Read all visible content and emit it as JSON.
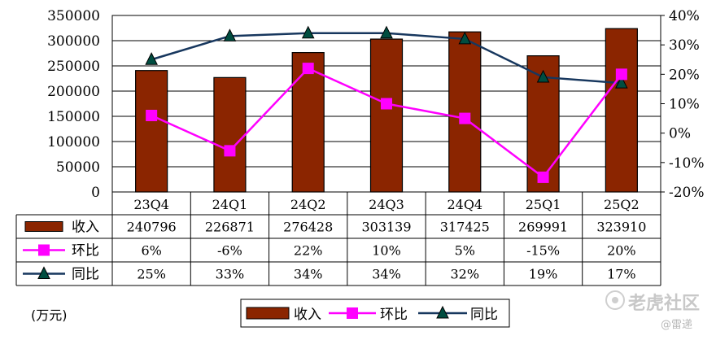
{
  "chart_data": {
    "type": "bar",
    "categories": [
      "23Q4",
      "24Q1",
      "24Q2",
      "24Q3",
      "24Q4",
      "25Q1",
      "25Q2"
    ],
    "series": [
      {
        "name": "收入",
        "kind": "bar",
        "axis": "left",
        "values": [
          240796,
          226871,
          276428,
          303139,
          317425,
          269991,
          323910
        ],
        "color": "#8B2500",
        "labels": [
          "240796",
          "226871",
          "276428",
          "303139",
          "317425",
          "269991",
          "323910"
        ]
      },
      {
        "name": "环比",
        "kind": "line",
        "axis": "right",
        "marker": "square",
        "values": [
          6,
          -6,
          22,
          10,
          5,
          -15,
          20
        ],
        "color": "#FF00FF",
        "labels": [
          "6%",
          "-6%",
          "22%",
          "10%",
          "5%",
          "-15%",
          "20%"
        ]
      },
      {
        "name": "同比",
        "kind": "line",
        "axis": "right",
        "marker": "triangle",
        "values": [
          25,
          33,
          34,
          34,
          32,
          19,
          17
        ],
        "color": "#17375E",
        "labels": [
          "25%",
          "33%",
          "34%",
          "34%",
          "32%",
          "19%",
          "17%"
        ]
      }
    ],
    "y_left": {
      "min": 0,
      "max": 350000,
      "ticks": [
        "350000",
        "300000",
        "250000",
        "200000",
        "150000",
        "100000",
        "50000",
        "0"
      ]
    },
    "y_right": {
      "min": -20,
      "max": 40,
      "ticks": [
        "40%",
        "30%",
        "20%",
        "10%",
        "0%",
        "-10%",
        "-20%"
      ]
    },
    "unit_label": "(万元)",
    "legend_position": "bottom-center",
    "grid": true
  },
  "watermark": {
    "main": "老虎社区",
    "sub": "@雷递"
  }
}
